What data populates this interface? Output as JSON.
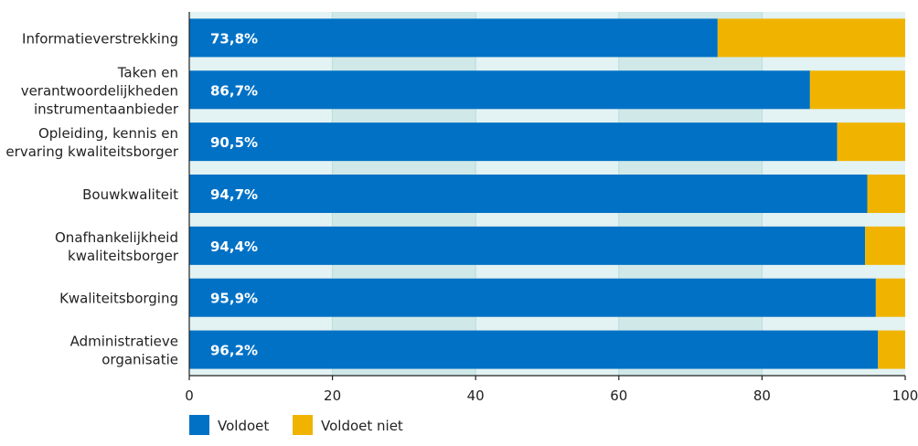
{
  "chart_data": {
    "type": "bar",
    "orientation": "horizontal",
    "stacked": true,
    "categories": [
      [
        "Informatieverstrekking"
      ],
      [
        "Taken en",
        "verantwoordelijkheden",
        "instrumentaanbieder"
      ],
      [
        "Opleiding, kennis en",
        "ervaring kwaliteitsborger"
      ],
      [
        "Bouwkwaliteit"
      ],
      [
        "Onafhankelijkheid",
        "kwaliteitsborger"
      ],
      [
        "Kwaliteitsborging"
      ],
      [
        "Administratieve",
        "organisatie"
      ]
    ],
    "series": [
      {
        "name": "Voldoet",
        "color": "#0071c5",
        "values": [
          73.8,
          86.7,
          90.5,
          94.7,
          94.4,
          95.9,
          96.2
        ],
        "labels": [
          "73,8%",
          "86,7%",
          "90,5%",
          "94,7%",
          "94,4%",
          "95,9%",
          "96,2%"
        ]
      },
      {
        "name": "Voldoet niet",
        "color": "#f0b400",
        "values": [
          26.2,
          13.3,
          9.5,
          5.3,
          5.6,
          4.1,
          3.8
        ]
      }
    ],
    "xlim": [
      0,
      100
    ],
    "xticks": [
      "0",
      "20",
      "40",
      "60",
      "80",
      "100"
    ],
    "legend_position": "bottom-left",
    "colors": {
      "band_light": "#e3f2f2",
      "band_dark": "#d0e9e8",
      "gridline": "#b9dcdc",
      "axis": "#222222",
      "text": "#222222",
      "data_label": "#ffffff"
    }
  }
}
